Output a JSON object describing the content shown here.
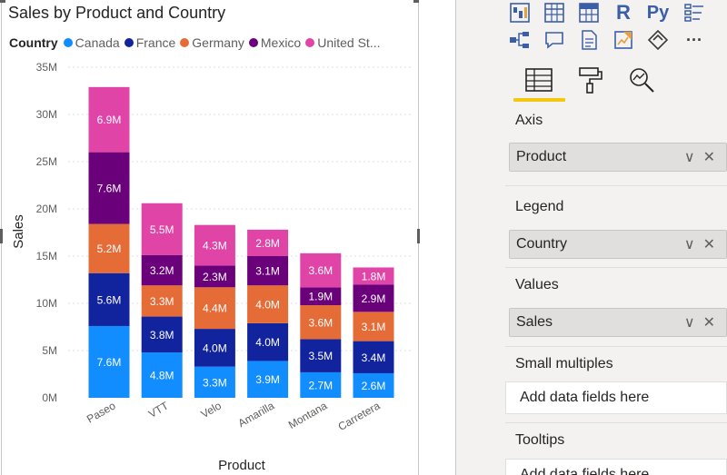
{
  "visual": {
    "title": "Sales by Product and Country",
    "legend_title": "Country",
    "legend_items": [
      {
        "label": "Canada",
        "color": "#118dff"
      },
      {
        "label": "France",
        "color": "#12239e"
      },
      {
        "label": "Germany",
        "color": "#e66c37"
      },
      {
        "label": "Mexico",
        "color": "#6b007b"
      },
      {
        "label": "United St...",
        "color": "#e044a7"
      }
    ]
  },
  "chart_data": {
    "type": "bar",
    "stacked": true,
    "title": "Sales by Product and Country",
    "xlabel": "Product",
    "ylabel": "Sales",
    "ylim": [
      0,
      35
    ],
    "yticks": [
      "0M",
      "5M",
      "10M",
      "15M",
      "20M",
      "25M",
      "30M",
      "35M"
    ],
    "categories": [
      "Paseo",
      "VTT",
      "Velo",
      "Amarilla",
      "Montana",
      "Carretera"
    ],
    "grid": true,
    "legend_position": "top",
    "series": [
      {
        "name": "Canada",
        "color": "#118dff",
        "values": [
          7.6,
          4.8,
          3.3,
          3.9,
          2.7,
          2.6
        ],
        "labels": [
          "7.6M",
          "4.8M",
          "3.3M",
          "3.9M",
          "2.7M",
          "2.6M"
        ]
      },
      {
        "name": "France",
        "color": "#12239e",
        "values": [
          5.6,
          3.8,
          4.0,
          4.0,
          3.5,
          3.4
        ],
        "labels": [
          "5.6M",
          "3.8M",
          "4.0M",
          "4.0M",
          "3.5M",
          "3.4M"
        ]
      },
      {
        "name": "Germany",
        "color": "#e66c37",
        "values": [
          5.2,
          3.3,
          4.4,
          4.0,
          3.6,
          3.1
        ],
        "labels": [
          "5.2M",
          "3.3M",
          "4.4M",
          "4.0M",
          "3.6M",
          "3.1M"
        ]
      },
      {
        "name": "Mexico",
        "color": "#6b007b",
        "values": [
          7.6,
          3.2,
          2.3,
          3.1,
          1.9,
          2.9
        ],
        "labels": [
          "7.6M",
          "3.2M",
          "2.3M",
          "3.1M",
          "1.9M",
          "2.9M"
        ]
      },
      {
        "name": "United St...",
        "color": "#e044a7",
        "values": [
          6.9,
          5.5,
          4.3,
          2.8,
          3.6,
          1.8
        ],
        "labels": [
          "6.9M",
          "5.5M",
          "4.3M",
          "2.8M",
          "3.6M",
          "1.8M"
        ]
      }
    ]
  },
  "pane": {
    "viz_icons_row1": [
      {
        "name": "waterfall-chart-icon",
        "glyph": "▥"
      },
      {
        "name": "table-icon",
        "glyph": "▦"
      },
      {
        "name": "matrix-icon",
        "glyph": "▦"
      },
      {
        "name": "r-visual-icon",
        "glyph": "R"
      },
      {
        "name": "python-visual-icon",
        "glyph": "Py"
      },
      {
        "name": "key-influencers-icon",
        "glyph": "≡"
      }
    ],
    "viz_icons_row2": [
      {
        "name": "decomposition-tree-icon",
        "glyph": "⊶"
      },
      {
        "name": "qa-visual-icon",
        "glyph": "▭"
      },
      {
        "name": "smart-narrative-icon",
        "glyph": "▤"
      },
      {
        "name": "paginated-report-icon",
        "glyph": "◩"
      },
      {
        "name": "power-apps-icon",
        "glyph": "◈"
      },
      {
        "name": "more-visuals-icon",
        "glyph": "···"
      }
    ],
    "sections": {
      "axis_label": "Axis",
      "axis_value": "Product",
      "legend_label": "Legend",
      "legend_value": "Country",
      "values_label": "Values",
      "values_value": "Sales",
      "small_multiples_label": "Small multiples",
      "small_multiples_placeholder": "Add data fields here",
      "tooltips_label": "Tooltips",
      "tooltips_placeholder": "Add data fields here"
    },
    "well_expand_glyph": "∨",
    "well_remove_glyph": "✕"
  }
}
